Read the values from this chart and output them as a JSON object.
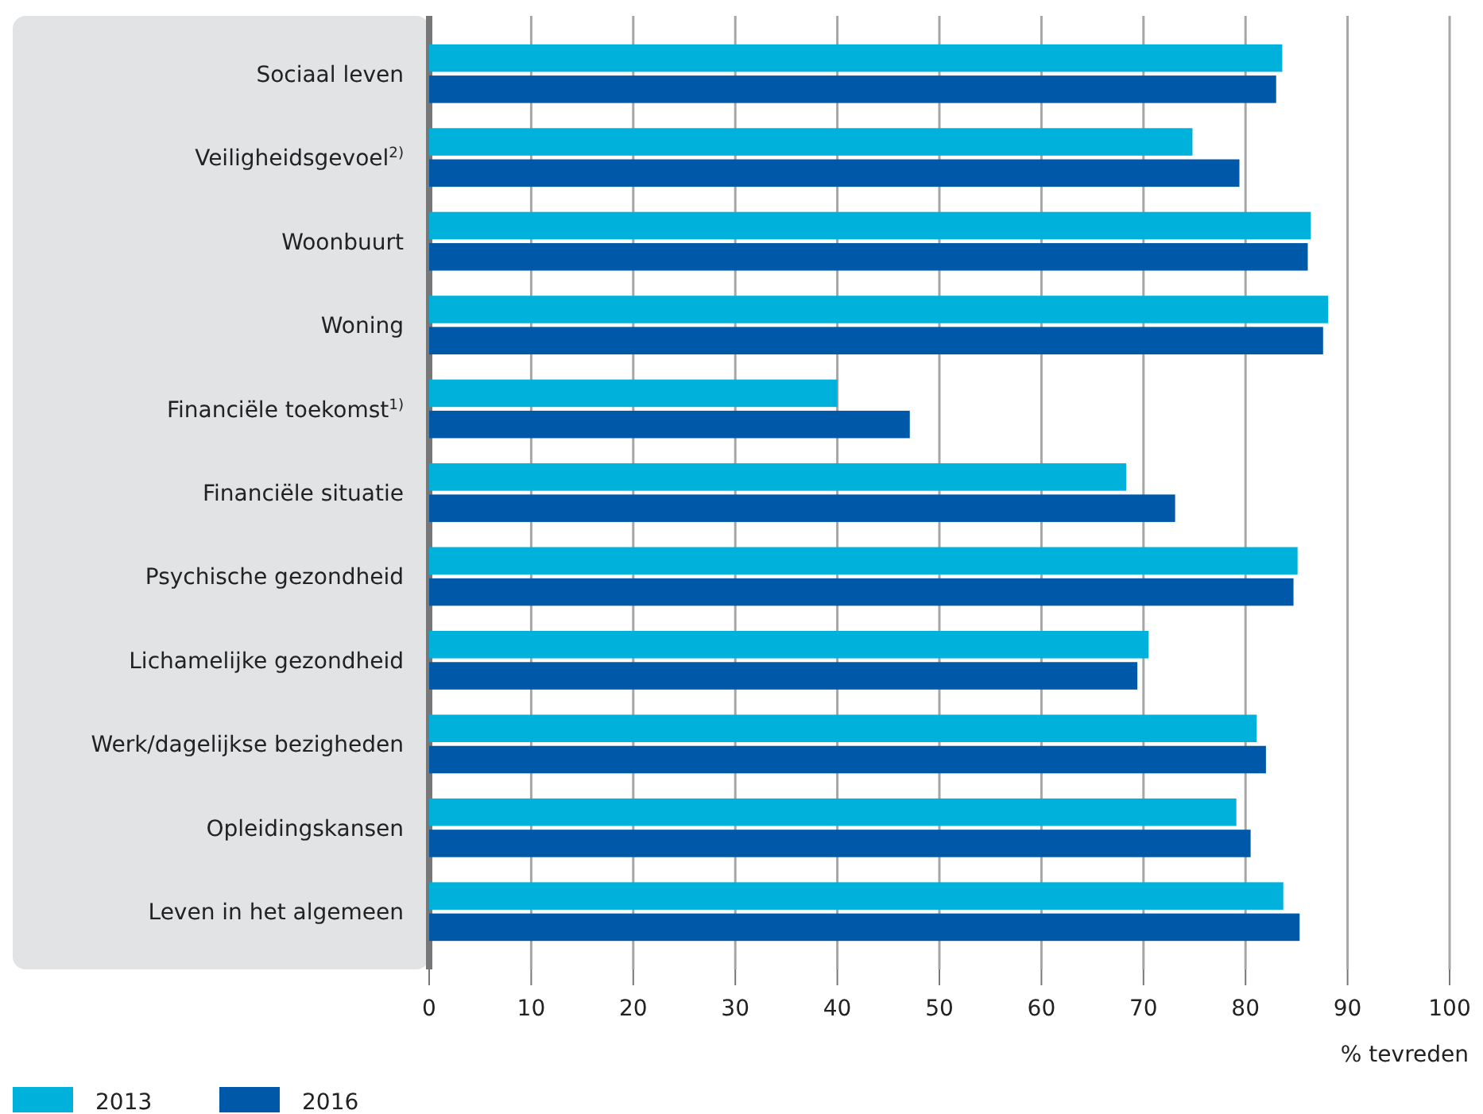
{
  "chart_data": {
    "type": "bar",
    "orientation": "horizontal",
    "xlabel": "% tevreden",
    "categories": [
      "Sociaal leven",
      "Veiligheidsgevoel$^{2)}$",
      "Woonbuurt",
      "Woning",
      "Financiële toekomst$^{1)}$",
      "Financiële situatie",
      "Psychische gezondheid",
      "Lichamelijke gezondheid",
      "Werk/dagelijkse bezigheden",
      "Opleidingskansen",
      "Leven in het algemeen"
    ],
    "series": [
      {
        "name": "2013",
        "color": "#00b1dc",
        "values": [
          83.6,
          74.8,
          86.4,
          88.1,
          40.0,
          68.3,
          85.1,
          70.5,
          81.1,
          79.1,
          83.7
        ]
      },
      {
        "name": "2016",
        "color": "#0058a8",
        "values": [
          83.0,
          79.4,
          86.1,
          87.6,
          47.1,
          73.1,
          84.7,
          69.4,
          82.0,
          80.5,
          85.3
        ]
      }
    ],
    "xlim": [
      0,
      100
    ],
    "xticks": [
      0,
      10,
      20,
      30,
      40,
      50,
      60,
      70,
      80,
      90,
      100
    ],
    "grid": "x",
    "legend": "bottom left"
  }
}
